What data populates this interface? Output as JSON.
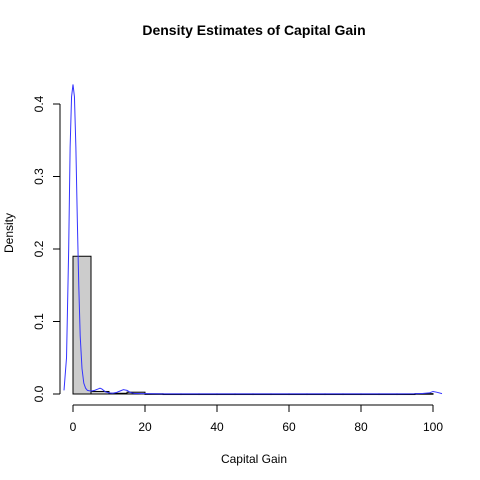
{
  "chart_data": {
    "type": "histogram",
    "title": "Density Estimates of Capital Gain",
    "xlabel": "Capital Gain",
    "ylabel": "Density",
    "xlim": [
      0,
      100
    ],
    "ylim": [
      0,
      0.4
    ],
    "x_ticks": [
      "0",
      "20",
      "40",
      "60",
      "80",
      "100"
    ],
    "y_ticks": [
      "0.0",
      "0.1",
      "0.2",
      "0.3",
      "0.4"
    ],
    "grid": false,
    "legend": "none",
    "colors": {
      "bar_fill": "#cccccc",
      "bar_stroke": "#000000",
      "density_line": "#3333ff"
    },
    "histogram": {
      "bin_width": 5,
      "bins": [
        {
          "from": 0,
          "to": 5,
          "density": 0.19
        },
        {
          "from": 5,
          "to": 10,
          "density": 0.0035
        },
        {
          "from": 10,
          "to": 15,
          "density": 0.001
        },
        {
          "from": 15,
          "to": 20,
          "density": 0.0025
        },
        {
          "from": 20,
          "to": 25,
          "density": 0.0003
        },
        {
          "from": 25,
          "to": 30,
          "density": 0.0001
        },
        {
          "from": 30,
          "to": 35,
          "density": 0.0001
        },
        {
          "from": 35,
          "to": 40,
          "density": 0.0001
        },
        {
          "from": 40,
          "to": 45,
          "density": 0.0001
        },
        {
          "from": 45,
          "to": 50,
          "density": 0.0001
        },
        {
          "from": 50,
          "to": 55,
          "density": 0.0001
        },
        {
          "from": 55,
          "to": 60,
          "density": 0.0001
        },
        {
          "from": 60,
          "to": 65,
          "density": 0.0001
        },
        {
          "from": 65,
          "to": 70,
          "density": 0.0001
        },
        {
          "from": 70,
          "to": 75,
          "density": 0.0001
        },
        {
          "from": 75,
          "to": 80,
          "density": 0.0001
        },
        {
          "from": 80,
          "to": 85,
          "density": 0.0001
        },
        {
          "from": 85,
          "to": 90,
          "density": 0.0001
        },
        {
          "from": 90,
          "to": 95,
          "density": 0.0001
        },
        {
          "from": 95,
          "to": 100,
          "density": 0.0005
        }
      ]
    },
    "density_curve": {
      "x": [
        -2.5,
        -1.8,
        -1.2,
        -0.8,
        -0.4,
        0,
        0.4,
        0.8,
        1.2,
        1.6,
        2,
        2.5,
        3,
        3.5,
        4,
        5,
        6,
        7,
        7.5,
        8,
        9,
        10,
        11,
        12,
        13,
        14,
        15,
        16,
        17,
        18,
        19,
        20,
        22,
        25,
        30,
        40,
        50,
        60,
        70,
        80,
        90,
        95,
        97,
        99,
        100,
        101,
        102.5
      ],
      "y": [
        0.005,
        0.05,
        0.2,
        0.34,
        0.41,
        0.427,
        0.41,
        0.34,
        0.24,
        0.15,
        0.08,
        0.035,
        0.015,
        0.008,
        0.005,
        0.004,
        0.005,
        0.007,
        0.008,
        0.007,
        0.003,
        0.0015,
        0.001,
        0.002,
        0.004,
        0.006,
        0.005,
        0.002,
        0.0008,
        0.0006,
        0.0005,
        0.0005,
        0.0003,
        0.0002,
        0.0002,
        0.0002,
        0.0002,
        0.0002,
        0.0002,
        0.0002,
        0.0002,
        0.0003,
        0.0006,
        0.0015,
        0.0035,
        0.0025,
        0.0005
      ]
    }
  }
}
